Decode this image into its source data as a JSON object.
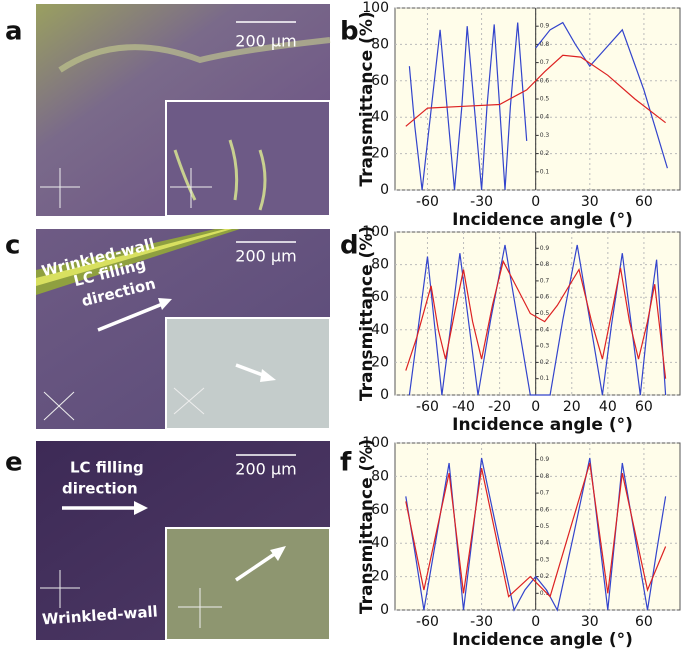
{
  "panels": [
    {
      "label": "a",
      "scale": "200 µm"
    },
    {
      "label": "b"
    },
    {
      "label": "c",
      "scale": "200 µm",
      "wall": "Wrinkled-wall",
      "direction": [
        "LC filling",
        "direction"
      ]
    },
    {
      "label": "d"
    },
    {
      "label": "e",
      "scale": "200 µm",
      "wall": "Wrinkled-wall",
      "direction": [
        "LC filling",
        "direction"
      ]
    },
    {
      "label": "f"
    }
  ],
  "chart_data": [
    {
      "type": "line",
      "xlabel": "Incidence angle (°)",
      "ylabel": "Transmittance (%)",
      "xlim": [
        -78,
        80
      ],
      "ylim": [
        0,
        100
      ],
      "xticks": [
        -60,
        -30,
        0,
        30,
        60
      ],
      "yticks": [
        0,
        20,
        40,
        60,
        80,
        100
      ],
      "y2lim": [
        0,
        1
      ],
      "y2ticks": [
        0.1,
        0.2,
        0.3,
        0.4,
        0.5,
        0.6,
        0.7,
        0.8,
        0.9
      ],
      "grid": true,
      "series": [
        {
          "color": "#3344cc",
          "x": [
            -70,
            -67,
            -63,
            -58,
            -53,
            -49,
            -45,
            -41,
            -38,
            -34,
            -30,
            -27,
            -23,
            -20,
            -17,
            -14,
            -10,
            -5,
            -2.5,
            0,
            8,
            15,
            22,
            30,
            39,
            48,
            60,
            73
          ],
          "values": [
            68,
            35,
            0,
            44,
            88,
            44,
            0,
            45,
            90,
            45,
            0,
            46,
            91,
            46,
            0,
            46,
            92,
            27,
            null,
            78,
            88,
            92,
            80,
            68,
            78,
            88,
            55,
            12
          ]
        },
        {
          "color": "#dd2222",
          "x": [
            -72,
            -60,
            -40,
            -20,
            -5,
            5,
            15,
            25,
            40,
            55,
            72
          ],
          "values": [
            35,
            45,
            46,
            47,
            55,
            65,
            74,
            73,
            63,
            50,
            37
          ]
        }
      ]
    },
    {
      "type": "line",
      "xlabel": "Incidence angle (°)",
      "ylabel": "Transmittance (%)",
      "xlim": [
        -78,
        80
      ],
      "ylim": [
        0,
        100
      ],
      "xticks": [
        -60,
        -40,
        -20,
        0,
        20,
        40,
        60
      ],
      "yticks": [
        0,
        20,
        40,
        60,
        80,
        100
      ],
      "y2lim": [
        0,
        1
      ],
      "y2ticks": [
        0.1,
        0.2,
        0.3,
        0.4,
        0.5,
        0.6,
        0.7,
        0.8,
        0.9
      ],
      "grid": true,
      "series": [
        {
          "color": "#3344cc",
          "x": [
            -70,
            -65,
            -60,
            -56,
            -52,
            -47,
            -42,
            -37,
            -32,
            -25,
            -17,
            -10,
            -3,
            8,
            15,
            23,
            30,
            37,
            42,
            48,
            53,
            58,
            62,
            67,
            72
          ],
          "values": [
            0,
            42,
            85,
            42,
            0,
            43,
            87,
            43,
            0,
            46,
            92,
            46,
            0,
            0,
            46,
            92,
            46,
            0,
            43,
            87,
            43,
            0,
            42,
            83,
            0
          ]
        },
        {
          "color": "#dd2222",
          "x": [
            -72,
            -66,
            -58,
            -54,
            -50,
            -45,
            -40,
            -35,
            -30,
            -24,
            -18,
            -10,
            -3,
            5,
            12,
            24,
            31,
            37,
            42,
            47,
            52,
            57,
            62,
            66,
            72
          ],
          "values": [
            15,
            35,
            67,
            40,
            22,
            50,
            77,
            45,
            22,
            55,
            82,
            65,
            50,
            45,
            55,
            77,
            45,
            22,
            50,
            78,
            45,
            22,
            45,
            68,
            10
          ]
        }
      ]
    },
    {
      "type": "line",
      "xlabel": "Incidence angle (°)",
      "ylabel": "Transmittance (%)",
      "xlim": [
        -78,
        80
      ],
      "ylim": [
        0,
        100
      ],
      "xticks": [
        -60,
        -30,
        0,
        30,
        60
      ],
      "yticks": [
        0,
        20,
        40,
        60,
        80,
        100
      ],
      "y2lim": [
        0,
        1
      ],
      "y2ticks": [
        0.1,
        0.2,
        0.3,
        0.4,
        0.5,
        0.6,
        0.7,
        0.8,
        0.9
      ],
      "grid": true,
      "series": [
        {
          "color": "#3344cc",
          "x": [
            -72,
            -67,
            -62,
            -55,
            -48,
            -44,
            -40,
            -35,
            -30,
            -21,
            -12,
            -6,
            0,
            6,
            12,
            21,
            30,
            35,
            40,
            44,
            48,
            55,
            62,
            67,
            72
          ],
          "values": [
            68,
            35,
            0,
            44,
            88,
            44,
            0,
            45,
            91,
            45,
            0,
            12,
            20,
            12,
            0,
            45,
            91,
            45,
            0,
            44,
            88,
            44,
            0,
            35,
            68
          ]
        },
        {
          "color": "#dd2222",
          "x": [
            -72,
            -62,
            -48,
            -40,
            -30,
            -15,
            -3,
            8,
            30,
            40,
            48,
            62,
            72
          ],
          "values": [
            65,
            12,
            82,
            10,
            85,
            8,
            20,
            8,
            88,
            10,
            82,
            12,
            38
          ]
        }
      ]
    }
  ]
}
